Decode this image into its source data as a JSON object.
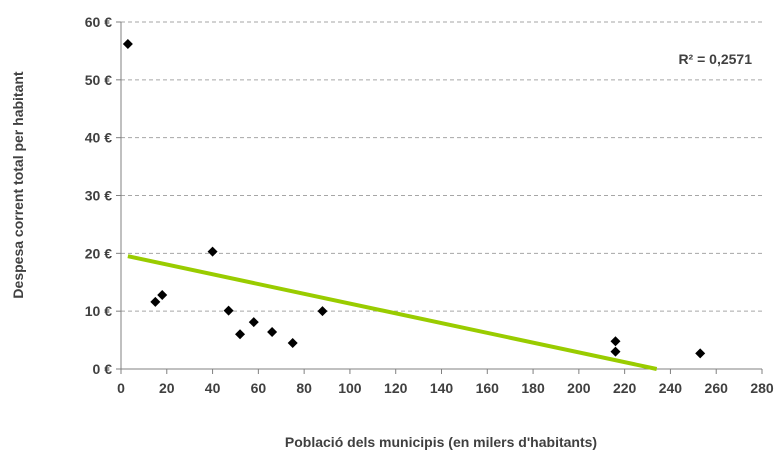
{
  "chart_data": {
    "type": "scatter",
    "title": "",
    "xlabel": "Població dels municipis (en milers d'habitants)",
    "ylabel": "Despesa corrent total per habitant",
    "xlim": [
      0,
      280
    ],
    "ylim": [
      0,
      60
    ],
    "x_ticks": [
      "0",
      "20",
      "40",
      "60",
      "80",
      "100",
      "120",
      "140",
      "160",
      "180",
      "200",
      "220",
      "240",
      "260",
      "280"
    ],
    "y_ticks": [
      "0 €",
      "10 €",
      "20 €",
      "30 €",
      "40 €",
      "50 €",
      "60 €"
    ],
    "grid": "horizontal dashed",
    "series": [
      {
        "marker": "diamond",
        "color": "#000000",
        "points": [
          {
            "x": 3,
            "y": 56.2
          },
          {
            "x": 15,
            "y": 11.6
          },
          {
            "x": 18,
            "y": 12.8
          },
          {
            "x": 40,
            "y": 20.3
          },
          {
            "x": 47,
            "y": 10.1
          },
          {
            "x": 52,
            "y": 6.0
          },
          {
            "x": 58,
            "y": 8.1
          },
          {
            "x": 66,
            "y": 6.4
          },
          {
            "x": 75,
            "y": 4.5
          },
          {
            "x": 88,
            "y": 10.0
          },
          {
            "x": 216,
            "y": 4.8
          },
          {
            "x": 216,
            "y": 3.0
          },
          {
            "x": 253,
            "y": 2.7
          }
        ]
      }
    ],
    "trendline": {
      "color": "#99cc00",
      "x": [
        3,
        234
      ],
      "y": [
        19.5,
        0
      ]
    },
    "annotation": "R² = 0,2571"
  }
}
